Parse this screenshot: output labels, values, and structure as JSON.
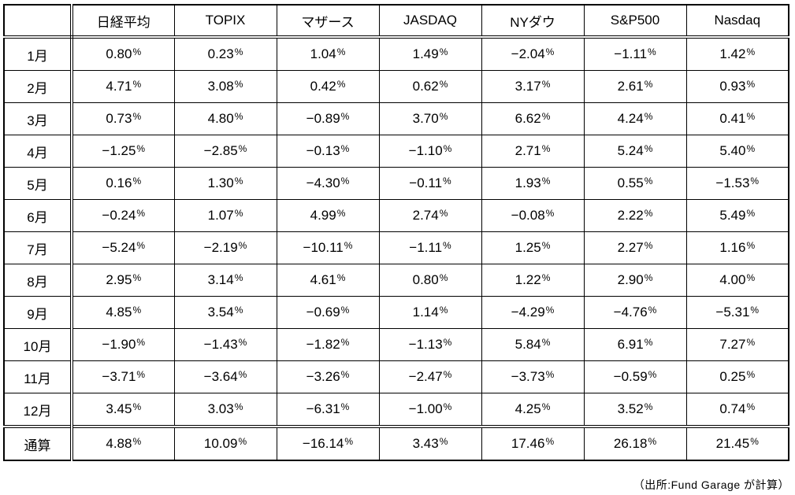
{
  "page": {
    "background_color": "#ffffff",
    "border_color": "#000000",
    "text_color": "#000000"
  },
  "table": {
    "header": [
      "",
      "日経平均",
      "TOPIX",
      "マザース",
      "JASDAQ",
      "NYダウ",
      "S&P500",
      "Nasdaq"
    ],
    "rows": [
      {
        "label": "1月",
        "values": [
          "0.80%",
          "0.23%",
          "1.04%",
          "1.49%",
          "−2.04%",
          "−1.11%",
          "1.42%"
        ]
      },
      {
        "label": "2月",
        "values": [
          "4.71%",
          "3.08%",
          "0.42%",
          "0.62%",
          "3.17%",
          "2.61%",
          "0.93%"
        ]
      },
      {
        "label": "3月",
        "values": [
          "0.73%",
          "4.80%",
          "−0.89%",
          "3.70%",
          "6.62%",
          "4.24%",
          "0.41%"
        ]
      },
      {
        "label": "4月",
        "values": [
          "−1.25%",
          "−2.85%",
          "−0.13%",
          "−1.10%",
          "2.71%",
          "5.24%",
          "5.40%"
        ]
      },
      {
        "label": "5月",
        "values": [
          "0.16%",
          "1.30%",
          "−4.30%",
          "−0.11%",
          "1.93%",
          "0.55%",
          "−1.53%"
        ]
      },
      {
        "label": "6月",
        "values": [
          "−0.24%",
          "1.07%",
          "4.99%",
          "2.74%",
          "−0.08%",
          "2.22%",
          "5.49%"
        ]
      },
      {
        "label": "7月",
        "values": [
          "−5.24%",
          "−2.19%",
          "−10.11%",
          "−1.11%",
          "1.25%",
          "2.27%",
          "1.16%"
        ]
      },
      {
        "label": "8月",
        "values": [
          "2.95%",
          "3.14%",
          "4.61%",
          "0.80%",
          "1.22%",
          "2.90%",
          "4.00%"
        ]
      },
      {
        "label": "9月",
        "values": [
          "4.85%",
          "3.54%",
          "−0.69%",
          "1.14%",
          "−4.29%",
          "−4.76%",
          "−5.31%"
        ]
      },
      {
        "label": "10月",
        "values": [
          "−1.90%",
          "−1.43%",
          "−1.82%",
          "−1.13%",
          "5.84%",
          "6.91%",
          "7.27%"
        ]
      },
      {
        "label": "11月",
        "values": [
          "−3.71%",
          "−3.64%",
          "−3.26%",
          "−2.47%",
          "−3.73%",
          "−0.59%",
          "0.25%"
        ]
      },
      {
        "label": "12月",
        "values": [
          "3.45%",
          "3.03%",
          "−6.31%",
          "−1.00%",
          "4.25%",
          "3.52%",
          "0.74%"
        ]
      }
    ],
    "total_row": {
      "label": "通算",
      "values": [
        "4.88%",
        "10.09%",
        "−16.14%",
        "3.43%",
        "17.46%",
        "26.18%",
        "21.45%"
      ]
    }
  },
  "footer": {
    "source_note": "（出所:Fund Garage が計算）"
  },
  "chart_data": {
    "type": "table",
    "title": "",
    "unit": "% (monthly return)",
    "columns": [
      "日経平均",
      "TOPIX",
      "マザース",
      "JASDAQ",
      "NYダウ",
      "S&P500",
      "Nasdaq"
    ],
    "row_labels": [
      "1月",
      "2月",
      "3月",
      "4月",
      "5月",
      "6月",
      "7月",
      "8月",
      "9月",
      "10月",
      "11月",
      "12月"
    ],
    "rows": [
      [
        0.8,
        0.23,
        1.04,
        1.49,
        -2.04,
        -1.11,
        1.42
      ],
      [
        4.71,
        3.08,
        0.42,
        0.62,
        3.17,
        2.61,
        0.93
      ],
      [
        0.73,
        4.8,
        -0.89,
        3.7,
        6.62,
        4.24,
        0.41
      ],
      [
        -1.25,
        -2.85,
        -0.13,
        -1.1,
        2.71,
        5.24,
        5.4
      ],
      [
        0.16,
        1.3,
        -4.3,
        -0.11,
        1.93,
        0.55,
        -1.53
      ],
      [
        -0.24,
        1.07,
        4.99,
        2.74,
        -0.08,
        2.22,
        5.49
      ],
      [
        -5.24,
        -2.19,
        -10.11,
        -1.11,
        1.25,
        2.27,
        1.16
      ],
      [
        2.95,
        3.14,
        4.61,
        0.8,
        1.22,
        2.9,
        4.0
      ],
      [
        4.85,
        3.54,
        -0.69,
        1.14,
        -4.29,
        -4.76,
        -5.31
      ],
      [
        -1.9,
        -1.43,
        -1.82,
        -1.13,
        5.84,
        6.91,
        7.27
      ],
      [
        -3.71,
        -3.64,
        -3.26,
        -2.47,
        -3.73,
        -0.59,
        0.25
      ],
      [
        3.45,
        3.03,
        -6.31,
        -1.0,
        4.25,
        3.52,
        0.74
      ]
    ],
    "total_label": "通算",
    "total_values": [
      4.88,
      10.09,
      -16.14,
      3.43,
      17.46,
      26.18,
      21.45
    ],
    "annotations": [
      "（出所:Fund Garage が計算）"
    ]
  }
}
